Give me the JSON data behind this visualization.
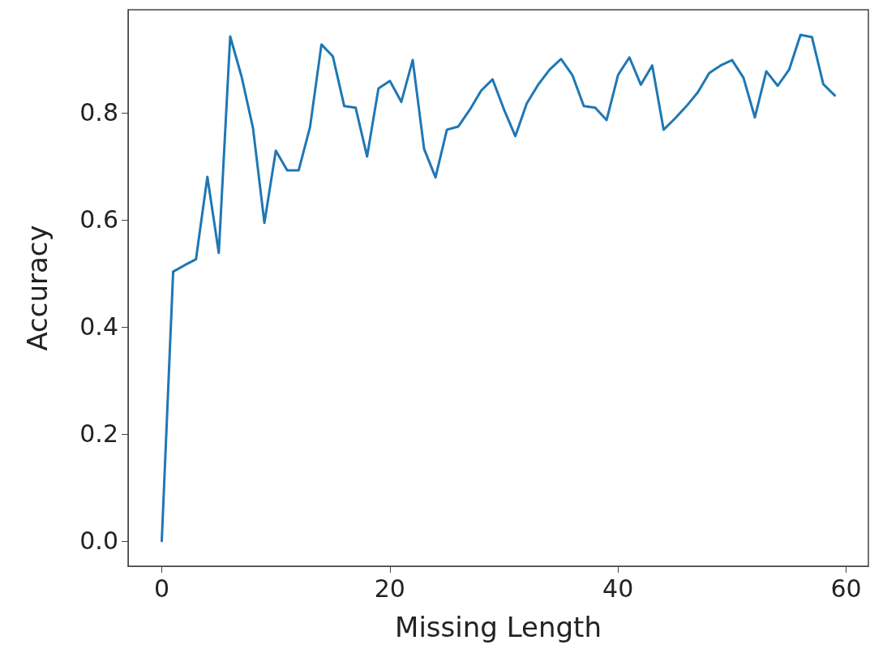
{
  "chart_data": {
    "type": "line",
    "xlabel": "Missing Length",
    "ylabel": "Accuracy",
    "x": [
      0,
      1,
      2,
      3,
      4,
      5,
      6,
      7,
      8,
      9,
      10,
      11,
      12,
      13,
      14,
      15,
      16,
      17,
      18,
      19,
      20,
      21,
      22,
      23,
      24,
      25,
      26,
      27,
      28,
      29,
      30,
      31,
      32,
      33,
      34,
      35,
      36,
      37,
      38,
      39,
      40,
      41,
      42,
      43,
      44,
      45,
      46,
      47,
      48,
      49,
      50,
      51,
      52,
      53,
      54,
      55,
      56,
      57,
      58,
      59
    ],
    "series": [
      {
        "color": "#1f77b4",
        "values": [
          0.0,
          0.503,
          0.515,
          0.526,
          0.68,
          0.538,
          0.942,
          0.867,
          0.771,
          0.594,
          0.729,
          0.692,
          0.692,
          0.773,
          0.927,
          0.905,
          0.812,
          0.809,
          0.718,
          0.845,
          0.859,
          0.82,
          0.898,
          0.732,
          0.679,
          0.768,
          0.774,
          0.805,
          0.841,
          0.862,
          0.806,
          0.756,
          0.817,
          0.852,
          0.88,
          0.9,
          0.87,
          0.812,
          0.809,
          0.786,
          0.87,
          0.903,
          0.852,
          0.888,
          0.768,
          0.789,
          0.812,
          0.838,
          0.874,
          0.888,
          0.898,
          0.865,
          0.791,
          0.877,
          0.85,
          0.88,
          0.945,
          0.941,
          0.853,
          0.832
        ]
      }
    ],
    "xlim": [
      -2.95,
      61.95
    ],
    "xticks": [
      0,
      20,
      40,
      60
    ],
    "ylim": [
      -0.047,
      0.992
    ],
    "yticks": [
      {
        "value": 0,
        "label": "0.0"
      },
      {
        "value": 0.2,
        "label": "0.2"
      },
      {
        "value": 0.4,
        "label": "0.4"
      },
      {
        "value": 0.6,
        "label": "0.6"
      },
      {
        "value": 0.8,
        "label": "0.8"
      }
    ],
    "grid": false,
    "marker": "none",
    "line_style": "solid"
  }
}
